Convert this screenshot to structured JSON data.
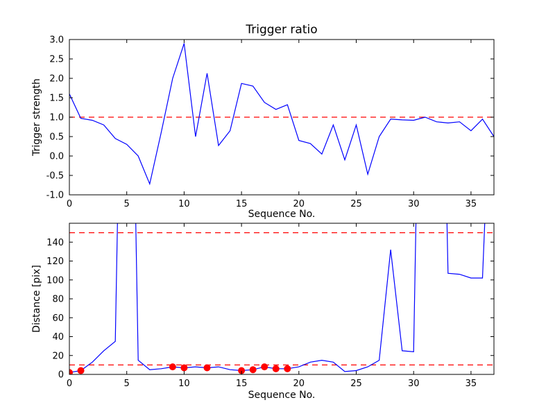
{
  "figure": {
    "background": "#ffffff",
    "frame_color": "#000000",
    "line_color": "#0000ff",
    "threshold_color": "#ff0000",
    "marker_color": "#ff0000"
  },
  "chart_data": [
    {
      "type": "line",
      "title": "Trigger ratio",
      "xlabel": "Sequence No.",
      "ylabel": "Trigger strength",
      "xlim": [
        0,
        37
      ],
      "ylim": [
        -1.0,
        3.0
      ],
      "grid": false,
      "legend": "none",
      "xticks": [
        0,
        5,
        10,
        15,
        20,
        25,
        30,
        35
      ],
      "xtick_labels": [
        "0",
        "5",
        "10",
        "15",
        "20",
        "25",
        "30",
        "35"
      ],
      "yticks": [
        3.0,
        2.5,
        2.0,
        1.5,
        1.0,
        0.5,
        0.0,
        -0.5,
        -1.0
      ],
      "ytick_labels": [
        "3.0",
        "2.5",
        "2.0",
        "1.5",
        "1.0",
        "0.5",
        "0.0",
        "-0.5",
        "-1.0"
      ],
      "hlines": [
        {
          "y": 1.0,
          "color": "#ff0000",
          "style": "dashed"
        }
      ],
      "series": [
        {
          "name": "trigger-strength-line",
          "color": "#0000ff",
          "x": [
            0,
            1,
            2,
            3,
            4,
            5,
            6,
            7,
            8,
            9,
            10,
            11,
            12,
            13,
            14,
            15,
            16,
            17,
            18,
            19,
            20,
            21,
            22,
            23,
            24,
            25,
            26,
            27,
            28,
            29,
            30,
            31,
            32,
            33,
            34,
            35,
            36,
            37
          ],
          "y": [
            1.6,
            0.97,
            0.92,
            0.8,
            0.45,
            0.3,
            0.0,
            -0.72,
            0.6,
            2.0,
            2.9,
            0.5,
            2.13,
            0.27,
            0.65,
            1.87,
            1.8,
            1.38,
            1.2,
            1.32,
            0.4,
            0.32,
            0.05,
            0.8,
            -0.1,
            0.8,
            -0.47,
            0.5,
            0.95,
            0.93,
            0.92,
            1.0,
            0.88,
            0.85,
            0.88,
            0.65,
            0.95,
            0.5
          ]
        }
      ]
    },
    {
      "type": "line",
      "title": "",
      "xlabel": "Sequence No.",
      "ylabel": "Distance [pix]",
      "xlim": [
        0,
        37
      ],
      "ylim": [
        0,
        160
      ],
      "grid": false,
      "legend": "none",
      "xticks": [
        0,
        5,
        10,
        15,
        20,
        25,
        30,
        35
      ],
      "xtick_labels": [
        "0",
        "5",
        "10",
        "15",
        "20",
        "25",
        "30",
        "35"
      ],
      "yticks": [
        0,
        20,
        40,
        60,
        80,
        100,
        120,
        140
      ],
      "ytick_labels": [
        "0",
        "20",
        "40",
        "60",
        "80",
        "100",
        "120",
        "140"
      ],
      "hlines": [
        {
          "y": 150,
          "color": "#ff0000",
          "style": "dashed"
        },
        {
          "y": 10,
          "color": "#ff0000",
          "style": "dashed"
        }
      ],
      "series": [
        {
          "name": "distance-line",
          "color": "#0000ff",
          "x": [
            0,
            1,
            2,
            3,
            4,
            5,
            6,
            7,
            8,
            9,
            10,
            11,
            12,
            13,
            14,
            15,
            16,
            17,
            18,
            19,
            20,
            21,
            22,
            23,
            24,
            25,
            26,
            27,
            28,
            29,
            30,
            31,
            32,
            33,
            34,
            35,
            36,
            37
          ],
          "y": [
            2,
            4,
            13,
            25,
            35,
            700,
            15,
            5,
            6,
            8,
            7,
            8,
            7,
            8,
            5,
            4,
            5,
            8,
            6,
            6,
            8,
            13,
            15,
            13,
            3,
            4,
            8,
            15,
            132,
            25,
            24,
            700,
            700,
            107,
            106,
            102,
            102,
            400
          ]
        }
      ],
      "markers": {
        "name": "triggered-points",
        "shape": "circle",
        "color": "#ff0000",
        "x": [
          0,
          1,
          9,
          10,
          12,
          15,
          16,
          17,
          18,
          19
        ],
        "y": [
          2,
          4,
          8,
          7,
          7,
          4,
          5,
          8,
          6,
          6
        ]
      }
    }
  ]
}
